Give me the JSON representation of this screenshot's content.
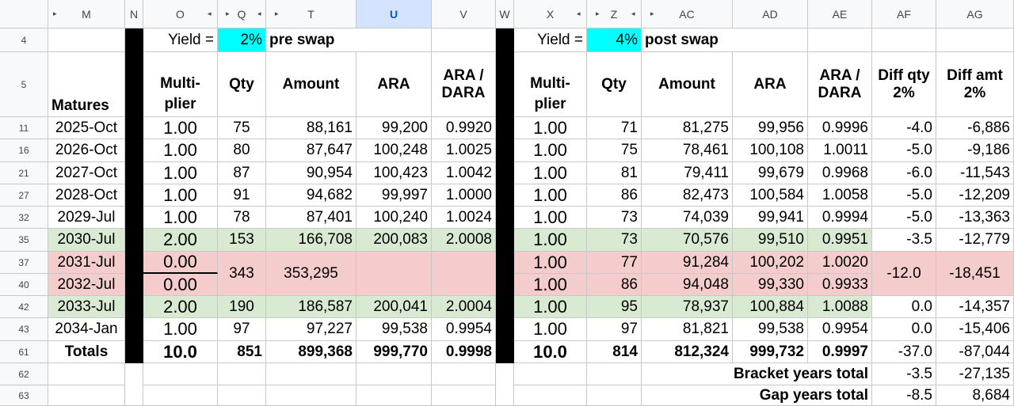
{
  "columns": [
    "M",
    "N",
    "O",
    "Q",
    "T",
    "U",
    "V",
    "W",
    "X",
    "Z",
    "AC",
    "AD",
    "AE",
    "AF",
    "AG"
  ],
  "row_numbers": [
    "4",
    "5",
    "11",
    "16",
    "21",
    "27",
    "32",
    "35",
    "37",
    "40",
    "42",
    "43",
    "61",
    "62",
    "63"
  ],
  "row4": {
    "yield_label": "Yield =",
    "yield_pre": "2%",
    "pre_swap": "pre swap",
    "yield_label2": "Yield =",
    "yield_post": "4%",
    "post_swap": "post swap"
  },
  "headers": {
    "matures": "Matures",
    "multiplier": "Multi-plier",
    "qty": "Qty",
    "amount": "Amount",
    "ara": "ARA",
    "ara_dara": "ARA / DARA",
    "diff_qty": "Diff qty 2%",
    "diff_amt": "Diff amt 2%"
  },
  "rows": [
    {
      "matures": "2025-Oct",
      "m1": "1.00",
      "q1": "75",
      "a1": "88,161",
      "ara1": "99,200",
      "r1": "0.9920",
      "m2": "1.00",
      "q2": "71",
      "a2": "81,275",
      "ara2": "99,956",
      "r2": "0.9996",
      "dq": "-4.0",
      "da": "-6,886"
    },
    {
      "matures": "2026-Oct",
      "m1": "1.00",
      "q1": "80",
      "a1": "87,647",
      "ara1": "100,248",
      "r1": "1.0025",
      "m2": "1.00",
      "q2": "75",
      "a2": "78,461",
      "ara2": "100,108",
      "r2": "1.0011",
      "dq": "-5.0",
      "da": "-9,186"
    },
    {
      "matures": "2027-Oct",
      "m1": "1.00",
      "q1": "87",
      "a1": "90,954",
      "ara1": "100,423",
      "r1": "1.0042",
      "m2": "1.00",
      "q2": "81",
      "a2": "79,411",
      "ara2": "99,679",
      "r2": "0.9968",
      "dq": "-6.0",
      "da": "-11,543"
    },
    {
      "matures": "2028-Oct",
      "m1": "1.00",
      "q1": "91",
      "a1": "94,682",
      "ara1": "99,997",
      "r1": "1.0000",
      "m2": "1.00",
      "q2": "86",
      "a2": "82,473",
      "ara2": "100,584",
      "r2": "1.0058",
      "dq": "-5.0",
      "da": "-12,209"
    },
    {
      "matures": "2029-Jul",
      "m1": "1.00",
      "q1": "78",
      "a1": "87,401",
      "ara1": "100,240",
      "r1": "1.0024",
      "m2": "1.00",
      "q2": "73",
      "a2": "74,039",
      "ara2": "99,941",
      "r2": "0.9994",
      "dq": "-5.0",
      "da": "-13,363"
    },
    {
      "matures": "2030-Jul",
      "m1": "2.00",
      "q1": "153",
      "a1": "166,708",
      "ara1": "200,083",
      "r1": "2.0008",
      "m2": "1.00",
      "q2": "73",
      "a2": "70,576",
      "ara2": "99,510",
      "r2": "0.9951",
      "dq": "-3.5",
      "da": "-12,779"
    },
    {
      "matures": "2031-Jul",
      "m1": "0.00",
      "q1": "343",
      "a1": "353,295",
      "ara1": "",
      "r1": "",
      "m2": "1.00",
      "q2": "77",
      "a2": "91,284",
      "ara2": "100,202",
      "r2": "1.0020",
      "dq": "-12.0",
      "da": "-18,451"
    },
    {
      "matures": "2032-Jul",
      "m1": "0.00",
      "q1": "",
      "a1": "",
      "ara1": "",
      "r1": "",
      "m2": "1.00",
      "q2": "86",
      "a2": "94,048",
      "ara2": "99,330",
      "r2": "0.9933",
      "dq": "",
      "da": ""
    },
    {
      "matures": "2033-Jul",
      "m1": "2.00",
      "q1": "190",
      "a1": "186,587",
      "ara1": "200,041",
      "r1": "2.0004",
      "m2": "1.00",
      "q2": "95",
      "a2": "78,937",
      "ara2": "100,884",
      "r2": "1.0088",
      "dq": "0.0",
      "da": "-14,357"
    },
    {
      "matures": "2034-Jan",
      "m1": "1.00",
      "q1": "97",
      "a1": "97,227",
      "ara1": "99,538",
      "r1": "0.9954",
      "m2": "1.00",
      "q2": "97",
      "a2": "81,821",
      "ara2": "99,538",
      "r2": "0.9954",
      "dq": "0.0",
      "da": "-15,406"
    }
  ],
  "totals": {
    "label": "Totals",
    "m1": "10.0",
    "q1": "851",
    "a1": "899,368",
    "ara1": "999,770",
    "r1": "0.9998",
    "m2": "10.0",
    "q2": "814",
    "a2": "812,324",
    "ara2": "999,732",
    "r2": "0.9997",
    "dq": "-37.0",
    "da": "-87,044"
  },
  "bracket": {
    "label": "Bracket years total",
    "dq": "-3.5",
    "da": "-27,135"
  },
  "gap": {
    "label": "Gap years total",
    "dq": "-8.5",
    "da": "8,684"
  }
}
